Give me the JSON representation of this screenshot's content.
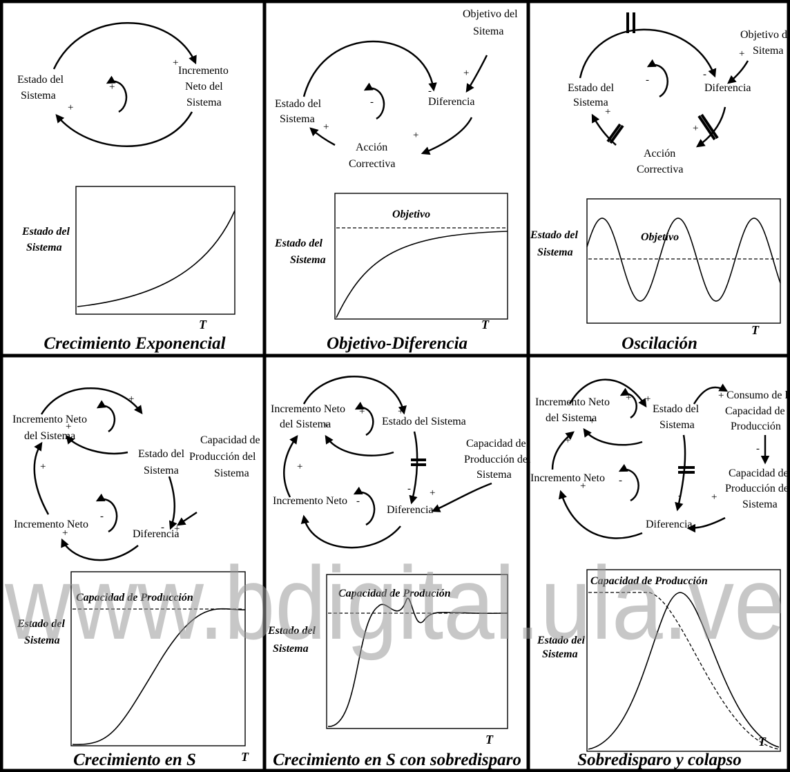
{
  "panels": [
    {
      "title": "Crecimiento Exponencial",
      "nodes": [
        [
          "Estado del",
          "Sistema"
        ],
        [
          "Incremento",
          "Neto del",
          "Sistema"
        ]
      ],
      "signs": [
        "+",
        "+",
        "+"
      ],
      "graph": {
        "y_label": [
          "Estado del",
          "Sistema"
        ],
        "x_label": "T"
      }
    },
    {
      "title": "Objetivo-Diferencia",
      "nodes": [
        [
          "Objetivo del",
          "Sitema"
        ],
        [
          "Estado del",
          "Sistema"
        ],
        [
          "Diferencia"
        ],
        [
          "Acción",
          "Correctiva"
        ]
      ],
      "signs": [
        "+",
        "-",
        "+",
        "+",
        "-"
      ],
      "graph": {
        "annotation": "Objetivo",
        "y_label": [
          "Estado del",
          "Sistema"
        ],
        "x_label": "T"
      }
    },
    {
      "title": "Oscilación",
      "nodes": [
        [
          "Objetivo del",
          "Sitema"
        ],
        [
          "Estado del",
          "Sistema"
        ],
        [
          "Diferencia"
        ],
        [
          "Acción",
          "Correctiva"
        ]
      ],
      "signs": [
        "+",
        "-",
        "+",
        "+",
        "-"
      ],
      "graph": {
        "annotation": "Objetivo",
        "y_label": [
          "Estado del",
          "Sistema"
        ],
        "x_label": "T"
      }
    },
    {
      "title": "Crecimiento en S",
      "nodes": [
        [
          "Incremento Neto",
          "del Sistema"
        ],
        [
          "Estado del",
          "Sistema"
        ],
        [
          "Capacidad de",
          "Producción del",
          "Sistema"
        ],
        [
          "Incremento Neto"
        ],
        [
          "Diferencia"
        ]
      ],
      "signs": [
        "+",
        "+",
        "+",
        "+",
        "-",
        "+",
        "+",
        "-"
      ],
      "graph": {
        "annotation": "Capacidad de Producción",
        "y_label": [
          "Estado del",
          "Sistema"
        ],
        "x_label": "T"
      }
    },
    {
      "title": "Crecimiento en S con sobredisparo",
      "nodes": [
        [
          "Incremento Neto",
          "del Sistema"
        ],
        [
          "Estado del Sistema"
        ],
        [
          "Capacidad de",
          "Producción del",
          "Sistema"
        ],
        [
          "Incremento Neto"
        ],
        [
          "Diferencia"
        ]
      ],
      "signs": [
        "+",
        "+",
        "+",
        "-",
        "+",
        "+",
        "-"
      ],
      "graph": {
        "annotation": "Capacidad de Produción",
        "y_label": [
          "Estado del",
          "Sistema"
        ],
        "x_label": "T"
      }
    },
    {
      "title": "Sobredisparo y colapso",
      "nodes": [
        [
          "Incremento Neto",
          "del Sistema"
        ],
        [
          "Estado del",
          "Sistema"
        ],
        [
          "Consumo de la",
          "Capacidad de",
          "Producción"
        ],
        [
          "Capacidad de",
          "Producción del",
          "Sistema"
        ],
        [
          "Incremento Neto"
        ],
        [
          "Diferencia"
        ]
      ],
      "signs": [
        "+",
        "+",
        "+",
        "+",
        "-",
        "-",
        "+",
        "+",
        "+",
        "-"
      ],
      "graph": {
        "annotation": "Capacidad de Producción",
        "y_label": [
          "Estado del",
          "Sistema"
        ],
        "x_label": "T"
      }
    }
  ],
  "watermark": "www.bdigital.ula.ve"
}
